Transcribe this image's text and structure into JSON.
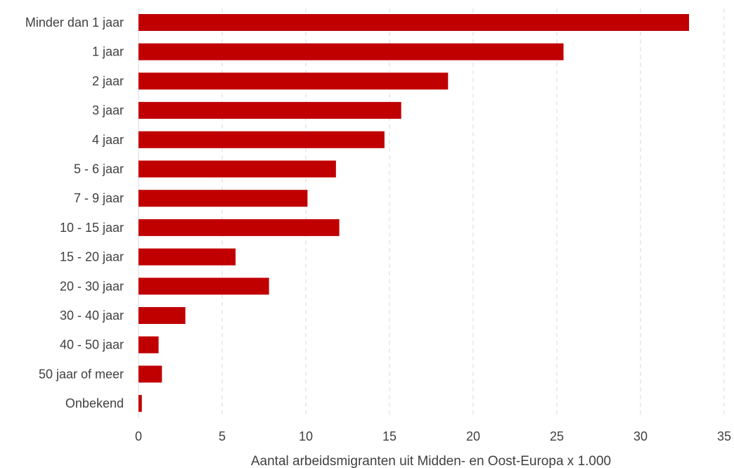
{
  "chart_data": {
    "type": "bar",
    "orientation": "horizontal",
    "categories": [
      "Minder dan 1 jaar",
      "1 jaar",
      "2 jaar",
      "3 jaar",
      "4 jaar",
      "5 - 6 jaar",
      "7 - 9 jaar",
      "10 - 15 jaar",
      "15 - 20 jaar",
      "20 - 30 jaar",
      "30 - 40 jaar",
      "40 - 50 jaar",
      "50 jaar of meer",
      "Onbekend"
    ],
    "values": [
      32.9,
      25.4,
      18.5,
      15.7,
      14.7,
      11.8,
      10.1,
      12.0,
      5.8,
      7.8,
      2.8,
      1.2,
      1.4,
      0.2
    ],
    "xlim": [
      0,
      35
    ],
    "xticks": [
      "0",
      "5",
      "10",
      "15",
      "20",
      "25",
      "30",
      "35"
    ],
    "xlabel": "Aantal arbeidsmigranten uit Midden- en Oost-Europa x 1.000",
    "ylabel": "",
    "title": "",
    "bar_color": "#c00000",
    "grid": "vertical dashed"
  }
}
